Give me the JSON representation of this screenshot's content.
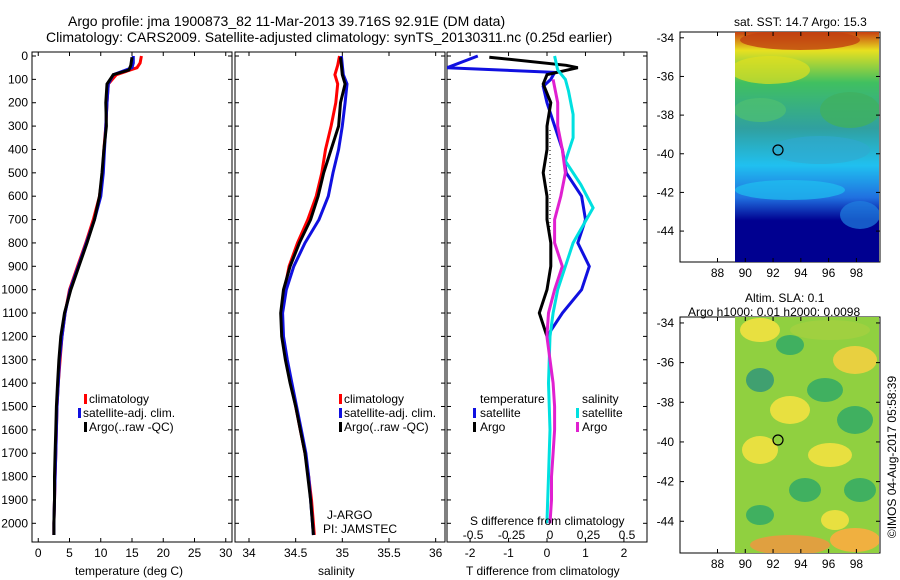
{
  "header": {
    "line1": "Argo profile: jma 1900873_82 11-Mar-2013 39.716S 92.91E (DM data)",
    "line2": "Climatology: CARS2009. Satellite-adjusted climatology: synTS_20130311.nc (0.25d earlier)"
  },
  "colors": {
    "climatology": "#ff0000",
    "satellite": "#1010e0",
    "argo": "#000000",
    "argo_salinity_diff": "#e020d0",
    "satellite_salinity_diff": "#00e0e0"
  },
  "chart_data": [
    {
      "type": "line",
      "id": "temperature",
      "xlabel": "temperature (deg C)",
      "ylabel": "",
      "xlim": [
        -1,
        31
      ],
      "ylim": [
        2080,
        0
      ],
      "xticks": [
        "0",
        "5",
        "10",
        "15",
        "20",
        "25",
        "30"
      ],
      "yticks": [
        "0",
        "100",
        "200",
        "300",
        "400",
        "500",
        "600",
        "700",
        "800",
        "900",
        "1000",
        "1100",
        "1200",
        "1300",
        "1400",
        "1500",
        "1600",
        "1700",
        "1800",
        "1900",
        "2000"
      ],
      "legend": [
        "climatology",
        "satellite-adj. clim.",
        "Argo(..raw -QC)"
      ],
      "series": [
        {
          "name": "climatology",
          "color_key": "climatology",
          "points": [
            [
              16.5,
              0
            ],
            [
              16.3,
              30
            ],
            [
              15.8,
              50
            ],
            [
              12.5,
              80
            ],
            [
              11.2,
              120
            ],
            [
              11.0,
              200
            ],
            [
              10.8,
              300
            ],
            [
              10.5,
              400
            ],
            [
              10.3,
              500
            ],
            [
              9.8,
              600
            ],
            [
              8.8,
              700
            ],
            [
              7.6,
              800
            ],
            [
              6.3,
              900
            ],
            [
              5.0,
              1000
            ],
            [
              4.3,
              1100
            ],
            [
              3.8,
              1200
            ],
            [
              3.5,
              1300
            ],
            [
              3.2,
              1400
            ],
            [
              3.0,
              1500
            ],
            [
              2.9,
              1600
            ],
            [
              2.8,
              1700
            ],
            [
              2.7,
              1800
            ],
            [
              2.6,
              1900
            ],
            [
              2.5,
              2000
            ],
            [
              2.5,
              2050
            ]
          ]
        },
        {
          "name": "satellite-adj. clim.",
          "color_key": "satellite",
          "points": [
            [
              15.2,
              0
            ],
            [
              15.2,
              30
            ],
            [
              15.0,
              50
            ],
            [
              12.0,
              80
            ],
            [
              11.2,
              120
            ],
            [
              11.0,
              200
            ],
            [
              10.8,
              300
            ],
            [
              10.6,
              400
            ],
            [
              10.4,
              500
            ],
            [
              10.0,
              600
            ],
            [
              9.0,
              700
            ],
            [
              7.7,
              800
            ],
            [
              6.4,
              900
            ],
            [
              5.1,
              1000
            ],
            [
              4.3,
              1100
            ],
            [
              3.8,
              1200
            ],
            [
              3.4,
              1300
            ],
            [
              3.2,
              1400
            ],
            [
              3.0,
              1500
            ],
            [
              2.9,
              1600
            ],
            [
              2.8,
              1700
            ],
            [
              2.7,
              1800
            ],
            [
              2.6,
              1900
            ],
            [
              2.5,
              2000
            ],
            [
              2.5,
              2050
            ]
          ]
        },
        {
          "name": "Argo(..raw -QC)",
          "color_key": "argo",
          "points": [
            [
              15.0,
              5
            ],
            [
              14.8,
              40
            ],
            [
              14.5,
              60
            ],
            [
              12.0,
              80
            ],
            [
              11.0,
              120
            ],
            [
              10.8,
              200
            ],
            [
              10.9,
              300
            ],
            [
              10.5,
              400
            ],
            [
              10.2,
              500
            ],
            [
              9.8,
              600
            ],
            [
              9.0,
              700
            ],
            [
              7.8,
              800
            ],
            [
              6.5,
              900
            ],
            [
              5.2,
              1000
            ],
            [
              4.2,
              1100
            ],
            [
              3.6,
              1200
            ],
            [
              3.3,
              1300
            ],
            [
              3.1,
              1400
            ],
            [
              2.9,
              1500
            ],
            [
              2.8,
              1600
            ],
            [
              2.7,
              1700
            ],
            [
              2.6,
              1800
            ],
            [
              2.6,
              1900
            ],
            [
              2.5,
              2000
            ],
            [
              2.5,
              2050
            ]
          ]
        }
      ]
    },
    {
      "type": "line",
      "id": "salinity",
      "xlabel": "salinity",
      "xlim": [
        33.85,
        36.1
      ],
      "ylim": [
        2080,
        0
      ],
      "xticks": [
        "34",
        "34.5",
        "35",
        "35.5",
        "36"
      ],
      "legend": [
        "climatology",
        "satellite-adj. clim.",
        "Argo(..raw -QC)"
      ],
      "annotations": [
        "J-ARGO",
        "PI: JAMSTEC"
      ],
      "series": [
        {
          "name": "climatology",
          "color_key": "climatology",
          "points": [
            [
              34.97,
              0
            ],
            [
              34.95,
              40
            ],
            [
              34.92,
              80
            ],
            [
              34.95,
              120
            ],
            [
              34.93,
              200
            ],
            [
              34.88,
              300
            ],
            [
              34.82,
              400
            ],
            [
              34.78,
              500
            ],
            [
              34.72,
              600
            ],
            [
              34.63,
              700
            ],
            [
              34.52,
              800
            ],
            [
              34.43,
              900
            ],
            [
              34.38,
              1000
            ],
            [
              34.35,
              1100
            ],
            [
              34.36,
              1200
            ],
            [
              34.4,
              1300
            ],
            [
              34.45,
              1400
            ],
            [
              34.5,
              1500
            ],
            [
              34.55,
              1600
            ],
            [
              34.6,
              1700
            ],
            [
              34.64,
              1800
            ],
            [
              34.67,
              1900
            ],
            [
              34.69,
              2000
            ],
            [
              34.7,
              2050
            ]
          ]
        },
        {
          "name": "satellite-adj. clim.",
          "color_key": "satellite",
          "points": [
            [
              34.99,
              0
            ],
            [
              35.0,
              40
            ],
            [
              35.01,
              80
            ],
            [
              35.05,
              120
            ],
            [
              35.03,
              200
            ],
            [
              35.0,
              300
            ],
            [
              34.96,
              400
            ],
            [
              34.9,
              500
            ],
            [
              34.85,
              600
            ],
            [
              34.75,
              700
            ],
            [
              34.6,
              800
            ],
            [
              34.48,
              900
            ],
            [
              34.4,
              1000
            ],
            [
              34.36,
              1100
            ],
            [
              34.37,
              1200
            ],
            [
              34.41,
              1300
            ],
            [
              34.46,
              1400
            ],
            [
              34.51,
              1500
            ],
            [
              34.56,
              1600
            ],
            [
              34.61,
              1700
            ],
            [
              34.64,
              1800
            ],
            [
              34.66,
              1900
            ],
            [
              34.68,
              2000
            ],
            [
              34.69,
              2050
            ]
          ]
        },
        {
          "name": "Argo(..raw -QC)",
          "color_key": "argo",
          "points": [
            [
              34.98,
              5
            ],
            [
              34.99,
              40
            ],
            [
              35.0,
              80
            ],
            [
              35.03,
              120
            ],
            [
              34.98,
              200
            ],
            [
              34.96,
              300
            ],
            [
              34.88,
              400
            ],
            [
              34.8,
              500
            ],
            [
              34.74,
              600
            ],
            [
              34.66,
              700
            ],
            [
              34.54,
              800
            ],
            [
              34.44,
              900
            ],
            [
              34.37,
              1000
            ],
            [
              34.34,
              1100
            ],
            [
              34.35,
              1200
            ],
            [
              34.39,
              1300
            ],
            [
              34.44,
              1400
            ],
            [
              34.5,
              1500
            ],
            [
              34.55,
              1600
            ],
            [
              34.6,
              1700
            ],
            [
              34.63,
              1800
            ],
            [
              34.66,
              1900
            ],
            [
              34.68,
              2000
            ],
            [
              34.69,
              2050
            ]
          ]
        }
      ]
    },
    {
      "type": "line",
      "id": "difference",
      "xlabel": "T difference from climatology",
      "xlabel_top": "S difference from climatology",
      "xlim": [
        -2.6,
        2.6
      ],
      "ylim": [
        2080,
        0
      ],
      "xticks": [
        "-2",
        "-1",
        "0",
        "1",
        "2"
      ],
      "xticks_salinity": [
        "-0.5",
        "-0.25",
        "0",
        "0.25",
        "0.5"
      ],
      "legend_groups": [
        {
          "title": "temperature",
          "items": [
            "satellite",
            "Argo"
          ]
        },
        {
          "title": "salinity",
          "items": [
            "satellite",
            "Argo"
          ]
        }
      ],
      "series": [
        {
          "name": "temperature satellite",
          "color_key": "satellite",
          "points": [
            [
              -1.8,
              0
            ],
            [
              -2.6,
              50
            ],
            [
              0.2,
              70
            ],
            [
              0.1,
              100
            ],
            [
              -0.1,
              130
            ],
            [
              0.0,
              200
            ],
            [
              0.2,
              300
            ],
            [
              0.4,
              400
            ],
            [
              0.5,
              500
            ],
            [
              0.9,
              600
            ],
            [
              1.0,
              700
            ],
            [
              0.8,
              800
            ],
            [
              1.1,
              900
            ],
            [
              0.9,
              1000
            ],
            [
              0.4,
              1100
            ],
            [
              0.0,
              1200
            ]
          ]
        },
        {
          "name": "temperature Argo",
          "color_key": "argo",
          "points": [
            [
              -1.5,
              5
            ],
            [
              0.5,
              40
            ],
            [
              0.8,
              50
            ],
            [
              0.0,
              80
            ],
            [
              -0.1,
              120
            ],
            [
              0.1,
              200
            ],
            [
              0.0,
              300
            ],
            [
              0.0,
              400
            ],
            [
              -0.1,
              500
            ],
            [
              0.0,
              600
            ],
            [
              0.0,
              700
            ],
            [
              0.1,
              800
            ],
            [
              0.1,
              900
            ],
            [
              0.0,
              1000
            ],
            [
              -0.2,
              1100
            ],
            [
              0.0,
              1200
            ]
          ]
        },
        {
          "name": "salinity satellite",
          "color_key": "satellite_salinity_diff",
          "points": [
            [
              0.03,
              0
            ],
            [
              0.05,
              60
            ],
            [
              0.1,
              100
            ],
            [
              0.12,
              150
            ],
            [
              0.15,
              250
            ],
            [
              0.15,
              350
            ],
            [
              0.1,
              450
            ],
            [
              0.2,
              550
            ],
            [
              0.28,
              650
            ],
            [
              0.15,
              800
            ],
            [
              0.1,
              900
            ],
            [
              0.05,
              1000
            ],
            [
              0.02,
              1100
            ],
            [
              0.0,
              1200
            ],
            [
              -0.01,
              1400
            ],
            [
              0.0,
              1600
            ],
            [
              -0.01,
              1800
            ],
            [
              -0.02,
              2000
            ]
          ]
        },
        {
          "name": "salinity Argo",
          "color_key": "argo_salinity_diff",
          "points": [
            [
              0.02,
              100
            ],
            [
              0.05,
              200
            ],
            [
              0.05,
              300
            ],
            [
              0.08,
              400
            ],
            [
              0.1,
              500
            ],
            [
              0.07,
              600
            ],
            [
              0.03,
              700
            ],
            [
              0.03,
              800
            ],
            [
              0.08,
              900
            ],
            [
              0.03,
              1000
            ],
            [
              -0.01,
              1100
            ],
            [
              -0.02,
              1200
            ],
            [
              0.0,
              1300
            ],
            [
              0.02,
              1400
            ],
            [
              0.03,
              1500
            ],
            [
              0.03,
              1600
            ],
            [
              0.02,
              1700
            ],
            [
              0.01,
              1800
            ],
            [
              0.01,
              1900
            ],
            [
              0.0,
              2000
            ]
          ]
        }
      ]
    },
    {
      "type": "heatmap",
      "id": "sst-map",
      "title": "sat. SST: 14.7 Argo: 15.3",
      "xticks": [
        "88",
        "90",
        "92",
        "94",
        "96",
        "98"
      ],
      "yticks": [
        "-34",
        "-36",
        "-38",
        "-40",
        "-42",
        "-44"
      ],
      "marker": {
        "lon": 92.91,
        "lat": -39.716
      }
    },
    {
      "type": "heatmap",
      "id": "sla-map",
      "title_line1": "Altim. SLA: 0.1",
      "title_line2": "Argo h1000: 0.01 h2000: 0.0098",
      "xticks": [
        "88",
        "90",
        "92",
        "94",
        "96",
        "98"
      ],
      "yticks": [
        "-34",
        "-36",
        "-38",
        "-40",
        "-42",
        "-44"
      ],
      "marker": {
        "lon": 92.91,
        "lat": -39.716
      }
    }
  ],
  "footer": {
    "stamp": "©IMOS 04-Aug-2017 05:58:39"
  }
}
